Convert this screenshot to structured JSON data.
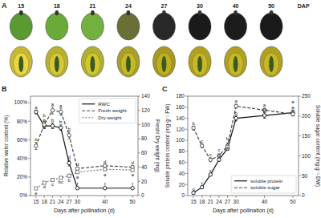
{
  "chart_data": [
    {
      "type": "illustration",
      "title": "A",
      "categories": [
        "15",
        "18",
        "21",
        "24",
        "27",
        "30",
        "40",
        "50"
      ],
      "annotations": [
        "DAP"
      ],
      "series": [
        {
          "colors": [
            "#5a9a30",
            "#6aaa38",
            "#72b040",
            "#6a7035",
            "#282828",
            "#1a1a1a",
            "#1c1c1c",
            "#1a1a1a"
          ]
        },
        {
          "colors": [
            "#c8b830",
            "#b8b030",
            "#b0b030",
            "#a8a028",
            "#a89820",
            "#b0a020",
            "#b0a020",
            "#b0a020"
          ]
        },
        {
          "colors": [
            "#e8d840",
            "#d8c838",
            "#d0c830",
            "#c8b828",
            "#c0b020",
            "#c8b828",
            "#c8b828",
            "#c8b828"
          ]
        }
      ]
    },
    {
      "type": "line",
      "title": "B",
      "x_label": "Days after pollination (d)",
      "y_label": "Relative water content (%)",
      "y2_label": "Fresh/ Dry weight (mg)",
      "x": [
        15,
        18,
        21,
        24,
        27,
        30,
        40,
        50
      ],
      "xlim": [
        13,
        52
      ],
      "xticks": [
        15,
        18,
        21,
        24,
        27,
        30,
        40,
        50
      ],
      "ylim": [
        0,
        107
      ],
      "yticks": [
        {
          "value": 0,
          "label": "0%"
        },
        {
          "value": 20,
          "label": "20%"
        },
        {
          "value": 40,
          "label": "40%"
        },
        {
          "value": 60,
          "label": "60%"
        },
        {
          "value": 80,
          "label": "80%"
        },
        {
          "value": 100,
          "label": "100%"
        }
      ],
      "y2lim": [
        0,
        140
      ],
      "y2ticks": [
        0,
        20,
        40,
        60,
        80,
        100,
        120,
        140
      ],
      "legend": "upper right",
      "series": [
        {
          "name": "RWC",
          "color": "#111111",
          "line_style": "solid",
          "marker": "circle",
          "values": [
            90,
            75,
            75,
            73,
            35,
            8,
            8,
            8
          ],
          "errors": [
            2,
            3,
            3,
            3,
            3,
            1,
            1,
            1
          ],
          "letters": [
            "a",
            "b",
            "b",
            "b",
            "d",
            "f",
            "f",
            "f"
          ]
        },
        {
          "name": "Fresh weight",
          "axis": "y2",
          "color": "#444444",
          "line_style": "dashed",
          "marker": "circle",
          "values": [
            70,
            100,
            120,
            118,
            85,
            38,
            42,
            40
          ],
          "errors": [
            5,
            5,
            5,
            5,
            5,
            2,
            2,
            2
          ],
          "letters": [
            "b",
            "b",
            "a",
            "a",
            "b",
            "d",
            "d",
            "d"
          ]
        },
        {
          "name": "Dry weight",
          "axis": "y2",
          "color": "#777777",
          "line_style": "dotted",
          "marker": "square",
          "values": [
            10,
            18,
            22,
            25,
            28,
            33,
            37,
            36
          ],
          "errors": [
            1,
            1,
            1,
            1,
            2,
            2,
            2,
            2
          ],
          "letters": [
            "e",
            "d",
            "c",
            "bc",
            "b",
            "a",
            "a",
            "a"
          ]
        }
      ]
    },
    {
      "type": "line",
      "title": "C",
      "x_label": "Days after pollination (d)",
      "y_label": "Soluble protein content (mg·g⁻¹ FW)",
      "y2_label": "Soluble sugar content (mg·g⁻¹ DW)",
      "x": [
        15,
        18,
        21,
        24,
        27,
        30,
        40,
        50
      ],
      "xlim": [
        13,
        52
      ],
      "xticks": [
        15,
        18,
        21,
        24,
        27,
        30,
        40,
        50
      ],
      "ylim": [
        0,
        180
      ],
      "yticks": [
        0,
        20,
        40,
        60,
        80,
        100,
        120,
        140,
        160,
        180
      ],
      "y2lim": [
        0,
        250
      ],
      "y2ticks": [
        0,
        50,
        100,
        150,
        200,
        250
      ],
      "legend": "lower right",
      "series": [
        {
          "name": "soluble protein",
          "color": "#111111",
          "line_style": "solid",
          "marker": "circle",
          "values": [
            5,
            15,
            38,
            65,
            85,
            140,
            145,
            150
          ],
          "errors": [
            1,
            2,
            2,
            3,
            3,
            5,
            5,
            5
          ],
          "letters": [
            "g",
            "f",
            "c",
            "d",
            "c",
            "b",
            "ab",
            "a"
          ]
        },
        {
          "name": "soluble sugar",
          "axis": "y2",
          "color": "#444444",
          "line_style": "dashed",
          "marker": "circle",
          "values": [
            170,
            125,
            90,
            100,
            125,
            225,
            215,
            205
          ],
          "errors": [
            5,
            5,
            5,
            5,
            8,
            5,
            5,
            5
          ],
          "letters": [
            "b",
            "c",
            "c",
            "c",
            "b",
            "a",
            "a",
            "a"
          ]
        }
      ]
    }
  ]
}
